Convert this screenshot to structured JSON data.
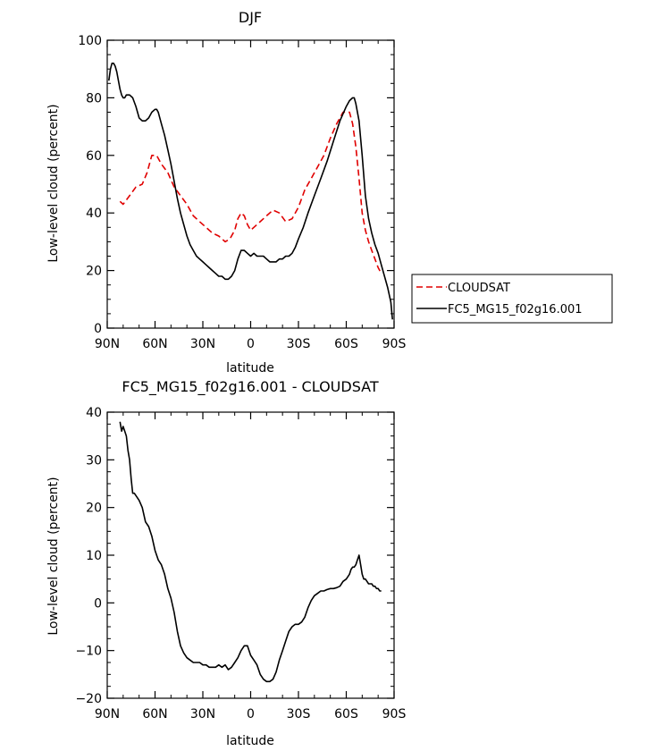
{
  "chart_data": [
    {
      "type": "line",
      "title": "DJF",
      "xlabel": "latitude",
      "ylabel": "Low-level cloud (percent)",
      "xlim": [
        90,
        -90
      ],
      "ylim": [
        0,
        100
      ],
      "x_ticks": [
        90,
        60,
        30,
        0,
        -30,
        -60,
        -90
      ],
      "x_tick_labels": [
        "90N",
        "60N",
        "30N",
        "0",
        "30S",
        "60S",
        "90S"
      ],
      "y_ticks": [
        0,
        20,
        40,
        60,
        80,
        100
      ],
      "y_tick_labels": [
        "0",
        "20",
        "40",
        "60",
        "80",
        "100"
      ],
      "legend_position": "right",
      "series": [
        {
          "name": "CLOUDSAT",
          "color": "#e00000",
          "dash": "dashed",
          "x": [
            82,
            80,
            76,
            72,
            68,
            65,
            62,
            59,
            56,
            52,
            48,
            44,
            40,
            36,
            32,
            28,
            24,
            20,
            16,
            13,
            10,
            8,
            6,
            4,
            2,
            0,
            -2,
            -6,
            -10,
            -14,
            -18,
            -22,
            -26,
            -30,
            -34,
            -38,
            -42,
            -46,
            -50,
            -54,
            -58,
            -62,
            -64,
            -66,
            -68,
            -70,
            -72,
            -74,
            -76,
            -78,
            -80,
            -82
          ],
          "y": [
            44,
            43,
            46,
            49,
            50,
            54,
            60,
            60,
            57,
            54,
            49,
            46,
            43,
            39,
            37,
            35,
            33,
            32,
            30,
            31,
            34,
            38,
            40,
            39,
            36,
            34,
            35,
            37,
            39,
            41,
            40,
            37,
            38,
            42,
            48,
            52,
            56,
            60,
            66,
            71,
            75,
            75,
            71,
            63,
            52,
            40,
            34,
            30,
            27,
            24,
            21,
            19
          ]
        },
        {
          "name": "FC5_MG15_f02g16.001",
          "color": "#000000",
          "dash": "solid",
          "x": [
            89,
            88,
            87,
            86,
            85,
            84,
            83,
            82,
            81,
            80,
            79,
            78,
            76,
            74,
            72,
            70,
            68,
            66,
            64,
            62,
            60,
            59,
            58,
            56,
            54,
            52,
            50,
            48,
            46,
            44,
            42,
            40,
            38,
            36,
            34,
            32,
            30,
            28,
            26,
            24,
            22,
            20,
            18,
            16,
            14,
            12,
            10,
            8,
            6,
            4,
            2,
            0,
            -2,
            -4,
            -6,
            -8,
            -10,
            -12,
            -14,
            -16,
            -18,
            -20,
            -22,
            -24,
            -26,
            -28,
            -30,
            -33,
            -36,
            -40,
            -44,
            -48,
            -52,
            -56,
            -60,
            -62,
            -64,
            -65,
            -66,
            -68,
            -70,
            -72,
            -74,
            -76,
            -78,
            -80,
            -82,
            -84,
            -86,
            -88,
            -89
          ],
          "y": [
            86,
            90,
            92,
            92,
            91,
            89,
            86,
            83,
            81,
            80,
            80,
            81,
            81,
            80,
            77,
            73,
            72,
            72,
            73,
            75,
            76,
            76,
            75,
            71,
            67,
            62,
            57,
            51,
            45,
            40,
            36,
            32,
            29,
            27,
            25,
            24,
            23,
            22,
            21,
            20,
            19,
            18,
            18,
            17,
            17,
            18,
            20,
            24,
            27,
            27,
            26,
            25,
            26,
            25,
            25,
            25,
            24,
            23,
            23,
            23,
            24,
            24,
            25,
            25,
            26,
            28,
            31,
            35,
            40,
            46,
            52,
            58,
            65,
            72,
            77,
            79,
            80,
            80,
            78,
            72,
            60,
            46,
            38,
            33,
            29,
            26,
            22,
            18,
            14,
            9,
            3
          ]
        }
      ]
    },
    {
      "type": "line",
      "title": "FC5_MG15_f02g16.001 - CLOUDSAT",
      "xlabel": "latitude",
      "ylabel": "Low-level cloud (percent)",
      "xlim": [
        90,
        -90
      ],
      "ylim": [
        -20,
        40
      ],
      "x_ticks": [
        90,
        60,
        30,
        0,
        -30,
        -60,
        -90
      ],
      "x_tick_labels": [
        "90N",
        "60N",
        "30N",
        "0",
        "30S",
        "60S",
        "90S"
      ],
      "y_ticks": [
        -20,
        -10,
        0,
        10,
        20,
        30,
        40
      ],
      "y_tick_labels": [
        "−20",
        "−10",
        "0",
        "10",
        "20",
        "30",
        "40"
      ],
      "series": [
        {
          "color": "#000000",
          "dash": "solid",
          "x": [
            82,
            81,
            80,
            79,
            78,
            77,
            76,
            75,
            74,
            73,
            72,
            70,
            68,
            66,
            64,
            62,
            60,
            58,
            56,
            54,
            52,
            50,
            48,
            46,
            44,
            42,
            40,
            38,
            36,
            34,
            32,
            30,
            28,
            26,
            24,
            22,
            20,
            18,
            16,
            14,
            12,
            10,
            8,
            6,
            4,
            2,
            0,
            -2,
            -4,
            -6,
            -8,
            -10,
            -12,
            -14,
            -16,
            -18,
            -20,
            -22,
            -24,
            -26,
            -28,
            -30,
            -32,
            -34,
            -36,
            -38,
            -40,
            -42,
            -44,
            -46,
            -48,
            -50,
            -52,
            -54,
            -56,
            -58,
            -60,
            -62,
            -63,
            -64,
            -65,
            -66,
            -67,
            -68,
            -69,
            -70,
            -71,
            -72,
            -73,
            -74,
            -75,
            -76,
            -77,
            -78,
            -79,
            -80,
            -81,
            -82
          ],
          "y": [
            38,
            36,
            37,
            36,
            35,
            32,
            30,
            26,
            23,
            23,
            22.5,
            21.5,
            20,
            17,
            16,
            14,
            11,
            9,
            8,
            6,
            3,
            1,
            -2,
            -6,
            -9,
            -10.5,
            -11.5,
            -12,
            -12.5,
            -12.5,
            -12.5,
            -13,
            -13,
            -13.5,
            -13.5,
            -13.5,
            -13,
            -13.5,
            -13,
            -14,
            -13.5,
            -12.5,
            -11.5,
            -10,
            -9,
            -9,
            -11,
            -12,
            -13,
            -15,
            -16,
            -16.5,
            -16.5,
            -16,
            -14.5,
            -12,
            -10,
            -8,
            -6,
            -5,
            -4.5,
            -4.5,
            -4,
            -3,
            -1,
            0.5,
            1.5,
            2,
            2.5,
            2.5,
            2.8,
            3,
            3,
            3.2,
            3.5,
            4.5,
            5,
            6,
            7,
            7.5,
            7.5,
            8,
            9,
            10,
            8,
            6,
            5,
            5,
            4.5,
            4,
            4,
            4,
            3.5,
            3.5,
            3,
            3,
            2.5,
            2.5
          ]
        }
      ]
    }
  ]
}
